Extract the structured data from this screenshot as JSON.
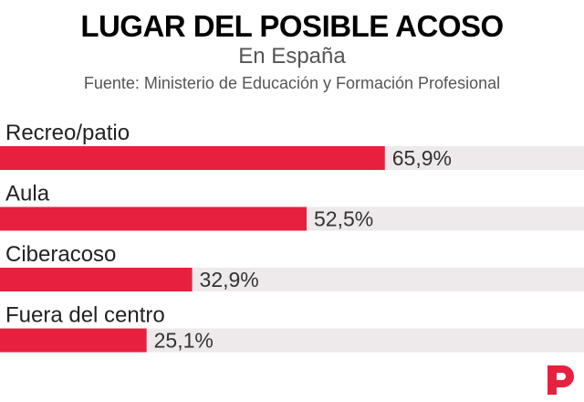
{
  "chart_data": {
    "type": "bar",
    "orientation": "horizontal",
    "title": "LUGAR DEL POSIBLE ACOSO",
    "subtitle": "En España",
    "source": "Fuente: Ministerio de Educación y Formación Profesional",
    "categories": [
      "Recreo/patio",
      "Aula",
      "Ciberacoso",
      "Fuera del centro"
    ],
    "values": [
      65.9,
      52.5,
      32.9,
      25.1
    ],
    "value_labels": [
      "65,9%",
      "52,5%",
      "32,9%",
      "25,1%"
    ],
    "unit": "%",
    "xlim": [
      0,
      100
    ],
    "grid": false,
    "legend": "none",
    "colors": {
      "bar": "#e8203f",
      "track": "#eeeaec",
      "logo": "#e8203f"
    }
  },
  "logo": {
    "name": "publico-p-logo"
  }
}
